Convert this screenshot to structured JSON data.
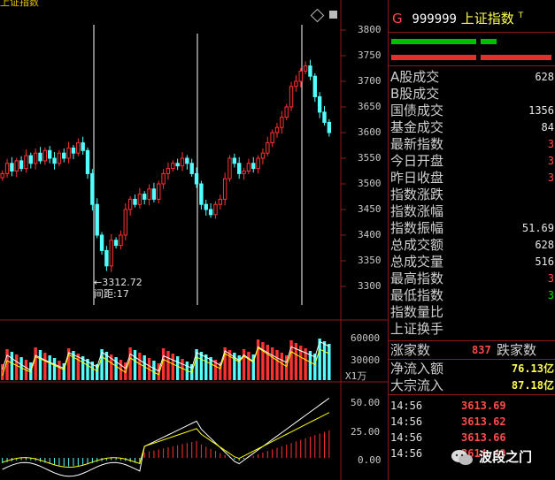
{
  "window": {
    "title_fragment": "上证指数"
  },
  "header": {
    "prefix": "G",
    "code": "999999",
    "name": "上证指数",
    "superscript": "T"
  },
  "main_chart": {
    "y_ticks": [
      "3800",
      "3750",
      "3700",
      "3650",
      "3600",
      "3550",
      "3500",
      "3450",
      "3400",
      "3350",
      "3300"
    ],
    "low_annotation": "←3312.72",
    "distance_annotation": "间距:17"
  },
  "volume_chart": {
    "y_ticks": [
      "60000",
      "30000"
    ],
    "unit_label": "X1万"
  },
  "macd_chart": {
    "y_ticks": [
      "50.00",
      "25.00",
      "0.00"
    ]
  },
  "side_stats": [
    {
      "label": "A股成交",
      "value": "628"
    },
    {
      "label": "B股成交",
      "value": ""
    },
    {
      "label": "国债成交",
      "value": "1356"
    },
    {
      "label": "基金成交",
      "value": "84"
    },
    {
      "label": "最新指数",
      "value": "3"
    },
    {
      "label": "今日开盘",
      "value": "3"
    },
    {
      "label": "昨日收盘",
      "value": "3"
    },
    {
      "label": "指数涨跌",
      "value": ""
    },
    {
      "label": "指数涨幅",
      "value": ""
    },
    {
      "label": "指数振幅",
      "value": "51.69"
    },
    {
      "label": "总成交额",
      "value": "628"
    },
    {
      "label": "总成交量",
      "value": "516"
    },
    {
      "label": "最高指数",
      "value": "3"
    },
    {
      "label": "最低指数",
      "value": "3"
    },
    {
      "label": "指数量比",
      "value": ""
    },
    {
      "label": "上证换手",
      "value": ""
    }
  ],
  "breadth": {
    "up_label": "涨家数",
    "up_value": "837",
    "down_label": "跌家数"
  },
  "flow": [
    {
      "label": "净流入额",
      "value": "76.13亿"
    },
    {
      "label": "大宗流入",
      "value": "87.18亿"
    }
  ],
  "ticks": [
    {
      "time": "14:56",
      "price": "3613.69"
    },
    {
      "time": "14:56",
      "price": "3613.62"
    },
    {
      "time": "14:56",
      "price": "3613.66"
    },
    {
      "time": "14:56",
      "price": "3614.49"
    }
  ],
  "watermark": {
    "text": "波段之门"
  },
  "colors": {
    "up": "#ff3232",
    "down": "#54ffff",
    "green": "#00c000",
    "grid": "#8a1a1a"
  }
}
